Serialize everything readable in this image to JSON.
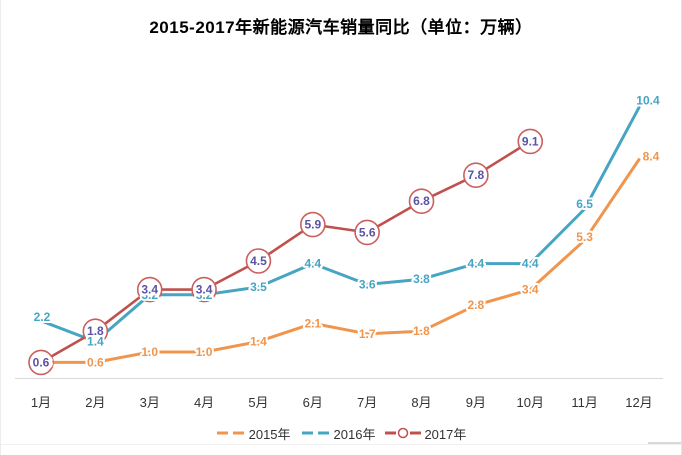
{
  "page": {
    "background": "#ffffff"
  },
  "chart_data": {
    "type": "line",
    "title": "2015-2017年新能源汽车销量同比（单位：万辆）",
    "categories": [
      "1月",
      "2月",
      "3月",
      "4月",
      "5月",
      "6月",
      "7月",
      "8月",
      "9月",
      "10月",
      "11月",
      "12月"
    ],
    "series": [
      {
        "name": "2015年",
        "color": "#f0954d",
        "marker": "none",
        "values": [
          0.6,
          0.6,
          1.0,
          1.0,
          1.4,
          2.1,
          1.7,
          1.8,
          2.8,
          3.4,
          5.3,
          8.4
        ]
      },
      {
        "name": "2016年",
        "color": "#46a5c2",
        "marker": "none",
        "values": [
          2.2,
          1.4,
          3.2,
          3.2,
          3.5,
          4.4,
          3.6,
          3.8,
          4.4,
          4.4,
          6.5,
          10.4
        ]
      },
      {
        "name": "2017年",
        "color": "#c0504d",
        "marker": "circle",
        "marker_ring_color": "#c9605e",
        "label_color": "#5b52a5",
        "values": [
          0.6,
          1.8,
          3.4,
          3.4,
          4.5,
          5.9,
          5.6,
          6.8,
          7.8,
          9.1
        ]
      }
    ],
    "label_offsets": {
      "2015年": {
        "0": [
          2,
          0
        ],
        "10": [
          0,
          -3
        ],
        "11": [
          12,
          -3
        ]
      },
      "2016年": {
        "0": [
          1,
          -4
        ],
        "10": [
          0,
          -5
        ],
        "11": [
          9,
          -7
        ]
      }
    },
    "legend_position": "bottom",
    "grid": false,
    "ylim": [
      0,
      11
    ],
    "axis_line_color": "#d9d9d9",
    "tick_color": "#333333",
    "xlabel": "",
    "ylabel": ""
  }
}
